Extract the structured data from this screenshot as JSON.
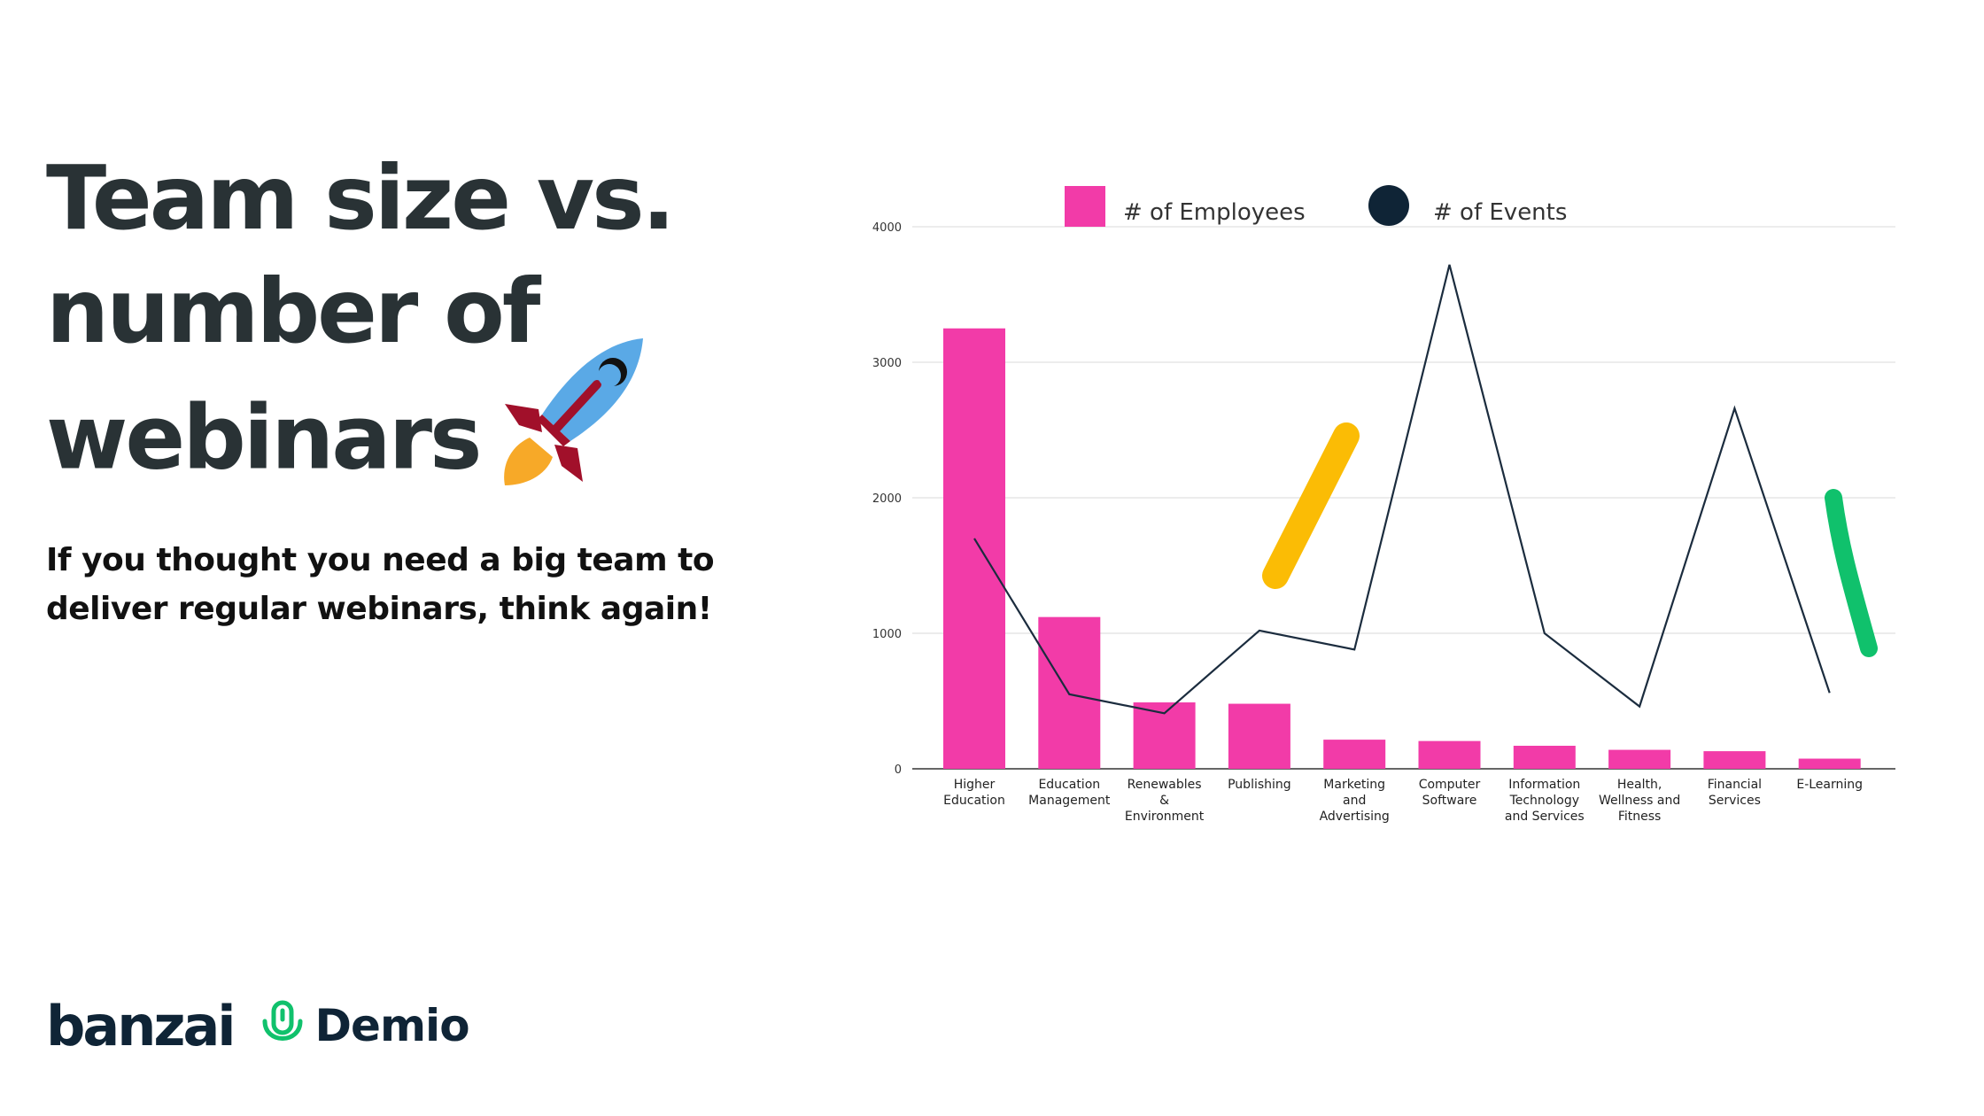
{
  "headline": {
    "lines": [
      "Team size vs.",
      "number of",
      "webinars"
    ]
  },
  "subtitle": {
    "lines": [
      "If you thought you need a big team to",
      "deliver regular webinars, think again!"
    ]
  },
  "rocket_icon": "rocket-emoji",
  "logos": {
    "banzai": "banzai",
    "demio": "Demio",
    "demio_icon": "microphone-icon"
  },
  "colors": {
    "bar": "#f23ba8",
    "line": "#1b2c3e",
    "legend_dot": "#0f2436",
    "headline": "#293235",
    "accent_yellow": "#fbbc05",
    "accent_green": "#10c16c"
  },
  "chart_data": {
    "type": "bar",
    "categories": [
      "Higher Education",
      "Education Management",
      "Renewables & Environment",
      "Publishing",
      "Marketing and Advertising",
      "Computer Software",
      "Information Technology and Services",
      "Health, Wellness and Fitness",
      "Financial Services",
      "E-Learning"
    ],
    "category_label_lines": [
      [
        "Higher",
        "Education"
      ],
      [
        "Education",
        "Management"
      ],
      [
        "Renewables",
        "&",
        "Environment"
      ],
      [
        "Publishing"
      ],
      [
        "Marketing",
        "and",
        "Advertising"
      ],
      [
        "Computer",
        "Software"
      ],
      [
        "Information",
        "Technology",
        "and Services"
      ],
      [
        "Health,",
        "Wellness and",
        "Fitness"
      ],
      [
        "Financial",
        "Services"
      ],
      [
        "E-Learning"
      ]
    ],
    "series": [
      {
        "name": "# of Employees",
        "type": "bar",
        "values": [
          3250,
          1120,
          490,
          480,
          215,
          205,
          170,
          140,
          130,
          75
        ]
      },
      {
        "name": "# of Events",
        "type": "line",
        "values": [
          1700,
          550,
          410,
          1020,
          880,
          3720,
          1000,
          460,
          2660,
          560
        ]
      }
    ],
    "ylim": [
      0,
      4000
    ],
    "yticks": [
      0,
      1000,
      2000,
      3000,
      4000
    ],
    "grid": true,
    "legend_position": "top",
    "title": "",
    "xlabel": "",
    "ylabel": ""
  }
}
